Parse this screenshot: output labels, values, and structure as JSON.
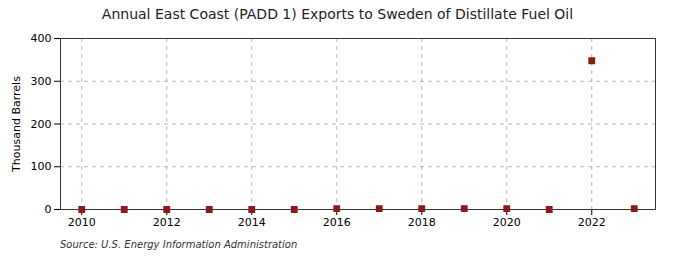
{
  "chart_data": {
    "type": "scatter",
    "title": "Annual East Coast (PADD 1) Exports to Sweden of Distillate Fuel Oil",
    "ylabel": "Thousand Barrels",
    "source": "Source: U.S. Energy Information Administration",
    "x": [
      2010,
      2011,
      2012,
      2013,
      2014,
      2015,
      2016,
      2017,
      2018,
      2019,
      2020,
      2021,
      2022,
      2023
    ],
    "values": [
      0,
      0,
      0,
      0,
      0,
      0,
      2,
      2,
      2,
      2,
      2,
      0,
      348,
      2
    ],
    "color": "#8b1a1a",
    "marker": "square",
    "xlim": [
      2009.5,
      2023.5
    ],
    "xticks": [
      2010,
      2012,
      2014,
      2016,
      2018,
      2020,
      2022
    ],
    "ylim": [
      0,
      400
    ],
    "yticks": [
      0,
      100,
      200,
      300,
      400
    ],
    "grid": true
  }
}
